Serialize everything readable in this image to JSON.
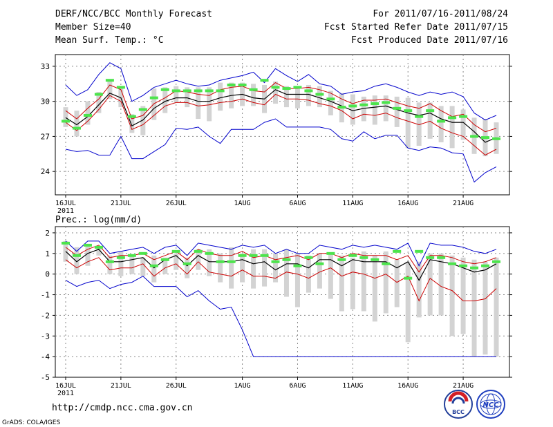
{
  "header": {
    "title": "DERF/NCC/BCC Monthly Forecast",
    "member_size": "Member Size=40",
    "variable": "Mean Surf. Temp.: °C",
    "period": "For 2011/07/16-2011/08/24",
    "fcst_started": "Fcst Started Refer Date 2011/07/15",
    "fcst_produced": "Fcst Produced Date 2011/07/16"
  },
  "footer": {
    "url": "http://cmdp.ncc.cma.gov.cn",
    "credit": "GrADS: COLA/IGES",
    "logo_left_text": "BCC",
    "logo_right_text": "NCC"
  },
  "colors": {
    "max_line": "#0000cc",
    "min_line": "#0000cc",
    "upper_spread": "#cc0000",
    "lower_spread": "#cc0000",
    "ensemble_mean": "#000000",
    "box": "#d3d3d3",
    "marker": "#4ce44c",
    "grid": "#888888"
  },
  "chart_data": [
    {
      "type": "line",
      "title": "Mean Surf. Temp.: °C",
      "ylim": [
        22,
        34
      ],
      "yticks": [
        24,
        27,
        30,
        33
      ],
      "xticks": [
        {
          "day": 1,
          "label": "16JUL"
        },
        {
          "day": 6,
          "label": "21JUL"
        },
        {
          "day": 11,
          "label": "26JUL"
        },
        {
          "day": 17,
          "label": "1AUG"
        },
        {
          "day": 22,
          "label": "6AUG"
        },
        {
          "day": 27,
          "label": "11AUG"
        },
        {
          "day": 32,
          "label": "16AUG"
        },
        {
          "day": 37,
          "label": "21AUG"
        }
      ],
      "year_label": "2011",
      "days": [
        1,
        2,
        3,
        4,
        5,
        6,
        7,
        8,
        9,
        10,
        11,
        12,
        13,
        14,
        15,
        16,
        17,
        18,
        19,
        20,
        21,
        22,
        23,
        24,
        25,
        26,
        27,
        28,
        29,
        30,
        31,
        32,
        33,
        34,
        35,
        36,
        37,
        38,
        39,
        40
      ],
      "series": [
        {
          "name": "max",
          "values": [
            31.4,
            30.5,
            31.0,
            32.3,
            33.3,
            32.8,
            30.0,
            30.5,
            31.2,
            31.5,
            31.8,
            31.5,
            31.3,
            31.4,
            31.8,
            32.0,
            32.2,
            32.5,
            31.6,
            32.8,
            32.2,
            31.7,
            32.3,
            31.5,
            31.3,
            30.6,
            30.8,
            30.9,
            31.3,
            31.5,
            31.2,
            30.8,
            30.5,
            30.8,
            30.6,
            30.8,
            30.4,
            29.0,
            28.4,
            28.8
          ]
        },
        {
          "name": "upper",
          "values": [
            29.2,
            28.5,
            29.4,
            30.2,
            31.4,
            31.0,
            28.5,
            28.8,
            29.8,
            30.3,
            30.9,
            30.8,
            30.6,
            30.5,
            31.0,
            31.2,
            31.3,
            30.9,
            30.8,
            31.6,
            31.1,
            31.1,
            31.2,
            31.0,
            30.7,
            30.2,
            29.8,
            30.1,
            30.1,
            30.2,
            29.9,
            29.6,
            29.4,
            29.8,
            29.2,
            28.7,
            28.9,
            28.0,
            27.4,
            27.7
          ]
        },
        {
          "name": "mean",
          "values": [
            28.6,
            28.0,
            28.7,
            29.7,
            30.7,
            30.3,
            27.9,
            28.4,
            29.4,
            30.0,
            30.3,
            30.3,
            30.0,
            30.0,
            30.3,
            30.5,
            30.6,
            30.3,
            30.2,
            31.0,
            30.6,
            30.6,
            30.6,
            30.3,
            30.0,
            29.6,
            29.2,
            29.4,
            29.5,
            29.6,
            29.3,
            29.0,
            28.8,
            29.0,
            28.5,
            28.2,
            28.2,
            27.4,
            26.5,
            26.9
          ]
        },
        {
          "name": "lower",
          "values": [
            28.2,
            27.5,
            28.3,
            29.3,
            30.5,
            30.0,
            27.6,
            28.0,
            28.8,
            29.6,
            29.9,
            29.9,
            29.6,
            29.7,
            29.9,
            30.0,
            30.2,
            29.9,
            29.7,
            30.6,
            30.2,
            30.2,
            30.1,
            29.8,
            29.6,
            29.2,
            28.5,
            28.9,
            28.8,
            29.0,
            28.6,
            28.3,
            28.0,
            28.3,
            27.7,
            27.3,
            27.0,
            26.2,
            25.4,
            25.9
          ]
        },
        {
          "name": "min",
          "values": [
            25.9,
            25.7,
            25.8,
            25.4,
            25.4,
            27.0,
            25.1,
            25.1,
            25.7,
            26.3,
            27.7,
            27.6,
            27.8,
            27.0,
            26.4,
            27.6,
            27.6,
            27.6,
            28.2,
            28.5,
            27.8,
            27.8,
            27.8,
            27.8,
            27.6,
            26.8,
            26.6,
            27.4,
            26.8,
            27.1,
            27.1,
            26.0,
            25.8,
            26.1,
            26.0,
            25.6,
            25.5,
            23.1,
            23.9,
            24.4
          ]
        },
        {
          "name": "box_top",
          "values": [
            29.5,
            29.2,
            30.0,
            30.8,
            31.9,
            31.2,
            28.9,
            29.6,
            31.1,
            31.2,
            31.3,
            31.2,
            31.2,
            31.2,
            31.6,
            31.6,
            31.6,
            31.5,
            31.4,
            31.7,
            31.3,
            31.3,
            31.4,
            31.3,
            30.9,
            30.7,
            30.6,
            30.4,
            30.5,
            30.5,
            30.4,
            30.3,
            29.9,
            29.9,
            29.6,
            29.6,
            29.3,
            28.6,
            28.5,
            28.2
          ]
        },
        {
          "name": "box_bottom",
          "values": [
            27.8,
            27.0,
            28.0,
            29.0,
            30.2,
            29.5,
            27.3,
            27.1,
            28.4,
            29.0,
            29.9,
            29.5,
            28.5,
            28.3,
            29.2,
            29.4,
            29.6,
            29.6,
            29.0,
            29.8,
            29.5,
            29.4,
            29.6,
            29.5,
            28.8,
            28.2,
            28.0,
            28.3,
            28.0,
            28.3,
            27.8,
            26.0,
            26.2,
            26.8,
            26.5,
            26.0,
            26.7,
            25.5,
            25.3,
            25.5
          ]
        },
        {
          "name": "marker",
          "values": [
            28.3,
            27.7,
            28.8,
            30.6,
            31.8,
            31.2,
            28.7,
            29.3,
            30.3,
            31.0,
            30.9,
            30.9,
            30.9,
            30.9,
            30.9,
            31.4,
            31.4,
            31.0,
            31.8,
            31.2,
            31.1,
            31.2,
            30.9,
            30.6,
            30.2,
            29.5,
            29.6,
            29.7,
            29.8,
            29.9,
            29.4,
            29.2,
            28.7,
            29.2,
            28.3,
            28.6,
            28.7,
            27.0,
            26.9,
            26.8
          ]
        }
      ]
    },
    {
      "type": "line",
      "title": "Prec.: log(mm/d)",
      "ylim": [
        -5,
        2.3
      ],
      "yticks": [
        -5,
        -4,
        -3,
        -2,
        -1,
        0,
        1,
        2
      ],
      "xticks": [
        {
          "day": 1,
          "label": "16JUL"
        },
        {
          "day": 6,
          "label": "21JUL"
        },
        {
          "day": 11,
          "label": "26JUL"
        },
        {
          "day": 17,
          "label": "1AUG"
        },
        {
          "day": 22,
          "label": "6AUG"
        },
        {
          "day": 27,
          "label": "11AUG"
        },
        {
          "day": 32,
          "label": "16AUG"
        },
        {
          "day": 37,
          "label": "21AUG"
        }
      ],
      "year_label": "2011",
      "days": [
        1,
        2,
        3,
        4,
        5,
        6,
        7,
        8,
        9,
        10,
        11,
        12,
        13,
        14,
        15,
        16,
        17,
        18,
        19,
        20,
        21,
        22,
        23,
        24,
        25,
        26,
        27,
        28,
        29,
        30,
        31,
        32,
        33,
        34,
        35,
        36,
        37,
        38,
        39,
        40
      ],
      "series": [
        {
          "name": "max",
          "values": [
            1.6,
            1.1,
            1.6,
            1.6,
            1.0,
            1.1,
            1.2,
            1.3,
            1.0,
            1.3,
            1.4,
            0.9,
            1.5,
            1.4,
            1.3,
            1.2,
            1.4,
            1.3,
            1.4,
            1.0,
            1.2,
            1.0,
            1.0,
            1.4,
            1.3,
            1.2,
            1.4,
            1.3,
            1.4,
            1.3,
            1.2,
            1.5,
            0.4,
            1.5,
            1.4,
            1.4,
            1.3,
            1.1,
            1.0,
            1.2
          ]
        },
        {
          "name": "upper",
          "values": [
            1.3,
            0.9,
            1.2,
            1.4,
            0.8,
            0.9,
            0.9,
            1.0,
            0.7,
            0.9,
            1.1,
            0.7,
            1.2,
            1.0,
            0.9,
            0.9,
            1.1,
            0.8,
            0.9,
            0.7,
            0.8,
            0.9,
            0.7,
            1.0,
            1.0,
            0.8,
            1.0,
            0.9,
            0.9,
            0.9,
            0.7,
            0.9,
            0.1,
            0.9,
            0.9,
            0.8,
            0.6,
            0.5,
            0.6,
            0.8
          ]
        },
        {
          "name": "mean",
          "values": [
            1.1,
            0.6,
            1.0,
            1.2,
            0.6,
            0.6,
            0.7,
            0.8,
            0.3,
            0.7,
            0.9,
            0.4,
            0.9,
            0.6,
            0.6,
            0.6,
            0.7,
            0.5,
            0.6,
            0.2,
            0.5,
            0.5,
            0.3,
            0.7,
            0.7,
            0.4,
            0.7,
            0.6,
            0.6,
            0.6,
            0.3,
            0.6,
            -0.3,
            0.7,
            0.6,
            0.5,
            0.3,
            0.1,
            0.2,
            0.5
          ]
        },
        {
          "name": "lower",
          "values": [
            0.7,
            0.3,
            0.6,
            0.8,
            0.2,
            0.3,
            0.3,
            0.5,
            -0.1,
            0.3,
            0.5,
            0.0,
            0.6,
            0.1,
            0.0,
            -0.1,
            0.2,
            -0.1,
            -0.1,
            -0.2,
            0.1,
            0.0,
            -0.2,
            0.1,
            0.3,
            -0.1,
            0.1,
            0.0,
            -0.2,
            0.0,
            -0.4,
            -0.1,
            -1.3,
            -0.2,
            -0.6,
            -0.8,
            -1.3,
            -1.3,
            -1.2,
            -0.7
          ]
        },
        {
          "name": "min",
          "values": [
            -0.3,
            -0.6,
            -0.4,
            -0.3,
            -0.7,
            -0.5,
            -0.4,
            -0.1,
            -0.6,
            -0.6,
            -0.6,
            -1.1,
            -0.8,
            -1.3,
            -1.7,
            -1.6,
            -2.7,
            -4.0,
            -4.0,
            -4.0,
            -4.0,
            -4.0,
            -4.0,
            -4.0,
            -4.0,
            -4.0,
            -4.0,
            -4.0,
            -4.0,
            -4.0,
            -4.0,
            -4.0,
            -4.0,
            -4.0,
            -4.0,
            -4.0,
            -4.0,
            -4.0,
            -4.0,
            -4.0
          ]
        },
        {
          "name": "box_top",
          "values": [
            1.6,
            1.3,
            1.4,
            1.3,
            0.9,
            1.1,
            0.9,
            0.8,
            0.9,
            0.8,
            1.0,
            0.8,
            1.2,
            1.2,
            1.0,
            1.3,
            1.0,
            1.2,
            1.2,
            1.0,
            1.2,
            1.0,
            0.9,
            1.0,
            1.0,
            0.9,
            0.8,
            1.1,
            0.9,
            1.1,
            0.7,
            0.6,
            0.6,
            1.0,
            1.0,
            0.9,
            0.8,
            0.7,
            0.6,
            0.8
          ]
        },
        {
          "name": "box_bottom",
          "values": [
            0.6,
            0.0,
            0.4,
            0.9,
            0.0,
            -0.1,
            0.0,
            -0.1,
            -0.4,
            0.0,
            0.2,
            -0.2,
            0.2,
            -0.1,
            -0.4,
            -0.7,
            -0.4,
            -0.7,
            -0.6,
            -0.4,
            -1.1,
            -1.6,
            -0.9,
            -0.7,
            -1.2,
            -1.8,
            -1.7,
            -1.8,
            -2.3,
            -1.9,
            -1.6,
            -3.3,
            -2.1,
            -2.0,
            -2.0,
            -3.0,
            -2.9,
            -4.0,
            -3.9,
            -4.0
          ]
        },
        {
          "name": "marker",
          "values": [
            1.5,
            0.9,
            1.4,
            1.3,
            0.6,
            0.8,
            0.9,
            1.0,
            0.4,
            0.7,
            1.1,
            0.5,
            1.1,
            1.0,
            0.6,
            0.6,
            0.9,
            0.9,
            0.9,
            0.6,
            0.7,
            0.4,
            0.8,
            0.5,
            1.0,
            0.7,
            0.9,
            0.8,
            0.7,
            0.5,
            1.1,
            -0.2,
            1.1,
            0.8,
            0.8,
            0.5,
            0.4,
            0.3,
            0.4,
            0.6
          ]
        }
      ]
    }
  ]
}
